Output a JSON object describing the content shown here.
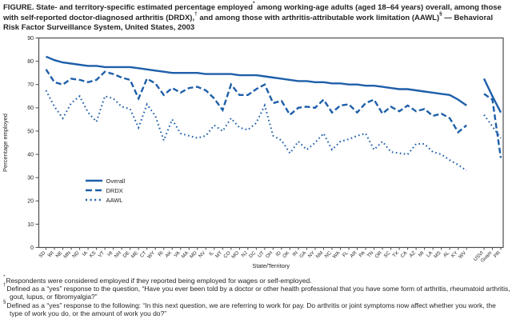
{
  "title_parts": [
    {
      "text": "FIGURE. State- and territory-specific estimated percentage employed"
    },
    {
      "sup": "*"
    },
    {
      "text": " among working-age adults (aged 18–64 years) overall, among those with self-reported doctor-diagnosed arthritis (DRDX),"
    },
    {
      "sup": "†"
    },
    {
      "text": " and among those with arthritis-attributable work limitation (AAWL)"
    },
    {
      "sup": "§"
    },
    {
      "text": " — Behavioral Risk Factor Surveillance System, United States, 2003"
    }
  ],
  "chart_data": {
    "type": "line",
    "title": "",
    "xlabel": "State/Territory",
    "ylabel": "Percentage employed",
    "ylim": [
      0,
      90
    ],
    "ytick_step": 10,
    "grid": false,
    "legend_position": "inside-left",
    "gap_before_category": "USVI",
    "categories": [
      "SD",
      "WI",
      "NE",
      "MN",
      "ND",
      "IA",
      "KS",
      "VT",
      "HI",
      "NH",
      "DE",
      "ME",
      "CT",
      "WY",
      "RI",
      "AK",
      "VA",
      "MA",
      "MD",
      "NV",
      "IL",
      "MT",
      "CO",
      "MO",
      "NJ",
      "DC",
      "UT",
      "OH",
      "ID",
      "OK",
      "IN",
      "GA",
      "NY",
      "NM",
      "NC",
      "WA",
      "FL",
      "AR",
      "PA",
      "TN",
      "OR",
      "SC",
      "TX",
      "CA",
      "AZ",
      "MI",
      "LA",
      "MS",
      "AL",
      "KY",
      "WV",
      "USVI",
      "Guam",
      "PR"
    ],
    "series": [
      {
        "name": "Overall",
        "style": "solid",
        "values": [
          82,
          80.5,
          79.5,
          79,
          78.5,
          78,
          78,
          77.5,
          77.5,
          77.5,
          77.5,
          77,
          76.5,
          76,
          75.5,
          75,
          75,
          75,
          75,
          74.5,
          74.5,
          74.5,
          74.5,
          74,
          74,
          74,
          73.5,
          73,
          72.5,
          72,
          71.5,
          71.5,
          71,
          71,
          70.5,
          70.5,
          70,
          70,
          69.5,
          69.5,
          69,
          68.5,
          68,
          68,
          67.5,
          67,
          66.5,
          66,
          65.5,
          63.5,
          61,
          72.5,
          65,
          58
        ]
      },
      {
        "name": "DRDX",
        "style": "dashed",
        "values": [
          76.5,
          71,
          70,
          72.5,
          72,
          71,
          72,
          75.5,
          74.5,
          73,
          72,
          64,
          72.5,
          70.5,
          65.5,
          68.5,
          66.5,
          68.5,
          69,
          67.5,
          64,
          59,
          70,
          65.5,
          65.5,
          68,
          70,
          62,
          63,
          57,
          60,
          60.5,
          60,
          63.5,
          58,
          61,
          61.5,
          58,
          62,
          63.5,
          57.5,
          60.5,
          58.5,
          61,
          58.5,
          59.5,
          56.5,
          57.5,
          55.5,
          49.5,
          52.5,
          66,
          63.5,
          38.5
        ]
      },
      {
        "name": "AAWL",
        "style": "dotted",
        "values": [
          67.5,
          60.5,
          55.5,
          62,
          65,
          58,
          54,
          65,
          64,
          60.5,
          59.5,
          51.5,
          61.5,
          56.5,
          46,
          55,
          49,
          48,
          47,
          48,
          52.5,
          50,
          55.5,
          51.5,
          50.5,
          53.5,
          61,
          48,
          46,
          40.5,
          45.5,
          42,
          45,
          49,
          42,
          45.5,
          46.5,
          48,
          49,
          42,
          45.5,
          41,
          40.5,
          40,
          44.5,
          44.5,
          41,
          40,
          37.5,
          35.5,
          33,
          57,
          52,
          47
        ]
      }
    ]
  },
  "y_tick_labels": [
    "0",
    "10",
    "20",
    "30",
    "40",
    "50",
    "60",
    "70",
    "80",
    "90"
  ],
  "footnotes": [
    {
      "marker": "*",
      "text": "Respondents were considered employed if they reported being employed for wages or self-employed."
    },
    {
      "marker": "†",
      "text": "Defined as a “yes” response to the question, “Have you ever been told by a doctor or other health professional that you have some form of arthritis, rheumatoid arthritis, gout, lupus, or fibromyalgia?”"
    },
    {
      "marker": "§",
      "text": "Defined as a “yes” response to the following: “In this next question, we are referring to work for pay. Do arthritis or joint symptoms now affect whether you work, the type of work you do, or the amount of work you do?”"
    }
  ],
  "colors": {
    "line_blue": "#1e5fa9",
    "axis": "#4d4d4f",
    "text": "#231f20"
  }
}
